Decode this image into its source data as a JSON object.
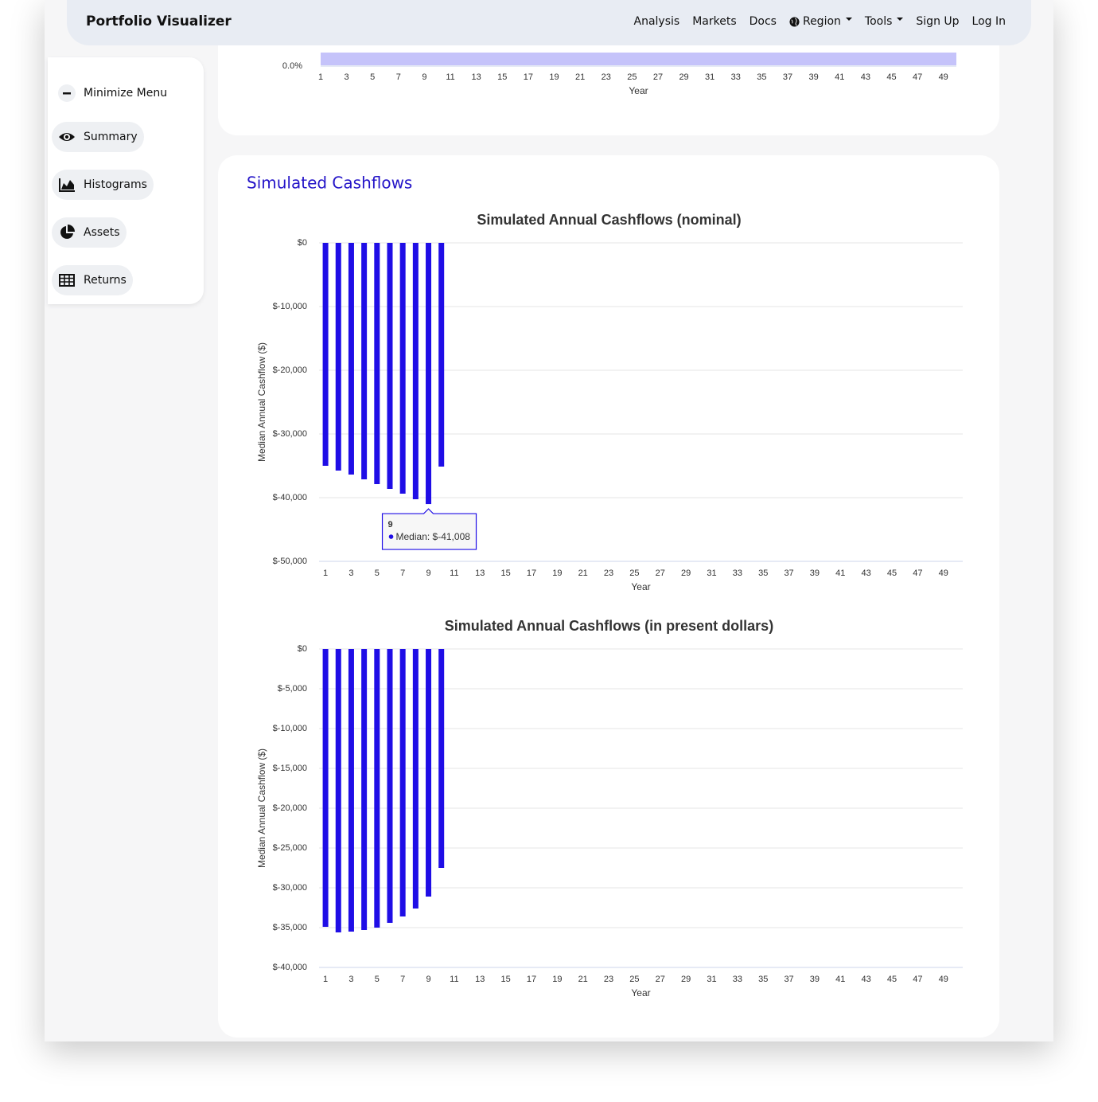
{
  "navbar": {
    "brand": "Portfolio Visualizer",
    "links": [
      "Analysis",
      "Markets",
      "Docs",
      "Region",
      "Tools",
      "Sign Up",
      "Log In"
    ]
  },
  "sidebar": {
    "items": [
      "Minimize Menu",
      "Summary",
      "Histograms",
      "Assets",
      "Returns"
    ]
  },
  "section_title": "Simulated Cashflows",
  "chart_data": [
    {
      "type": "area",
      "x_label": "Year",
      "xlim": [
        1,
        50
      ],
      "xticks": [
        1,
        3,
        5,
        7,
        9,
        11,
        13,
        15,
        17,
        19,
        21,
        23,
        25,
        27,
        29,
        31,
        33,
        35,
        37,
        39,
        41,
        43,
        45,
        47,
        49
      ],
      "yticks": [
        {
          "value": 0,
          "label": "0.0%"
        }
      ]
    },
    {
      "type": "bar",
      "title": "Simulated Annual Cashflows (nominal)",
      "x_label": "Year",
      "y_label": "Median Annual Cashflow ($)",
      "x": [
        1,
        2,
        3,
        4,
        5,
        6,
        7,
        8,
        9,
        10,
        11,
        12,
        13,
        14,
        15,
        16,
        17,
        18,
        19,
        20,
        21,
        22,
        23,
        24,
        25,
        26,
        27,
        28,
        29,
        30,
        31,
        32,
        33,
        34,
        35,
        36,
        37,
        38,
        39,
        40,
        41,
        42,
        43,
        44,
        45,
        46,
        47,
        48,
        49,
        50
      ],
      "xlim": [
        0.5,
        50.5
      ],
      "xticks": [
        1,
        3,
        5,
        7,
        9,
        11,
        13,
        15,
        17,
        19,
        21,
        23,
        25,
        27,
        29,
        31,
        33,
        35,
        37,
        39,
        41,
        43,
        45,
        47,
        49
      ],
      "ylim": [
        -50000,
        0
      ],
      "yticks": [
        {
          "value": 0,
          "label": "$0"
        },
        {
          "value": -10000,
          "label": "$-10,000"
        },
        {
          "value": -20000,
          "label": "$-20,000"
        },
        {
          "value": -30000,
          "label": "$-30,000"
        },
        {
          "value": -40000,
          "label": "$-40,000"
        },
        {
          "value": -50000,
          "label": "$-50,000"
        }
      ],
      "grid": true,
      "series": [
        {
          "name": "Median",
          "color": "#1f0de6",
          "values": [
            -35000,
            -35750,
            -36375,
            -37125,
            -37875,
            -38625,
            -39375,
            -40250,
            -41008,
            -35125,
            null,
            null,
            null,
            null,
            null,
            null,
            null,
            null,
            null,
            null,
            null,
            null,
            null,
            null,
            null,
            null,
            null,
            null,
            null,
            null,
            null,
            null,
            null,
            null,
            null,
            null,
            null,
            null,
            null,
            null,
            null,
            null,
            null,
            null,
            null,
            null,
            null,
            null,
            null,
            null
          ]
        }
      ],
      "tooltip": {
        "title": "9",
        "text": "Median: $-41,008"
      }
    },
    {
      "type": "bar",
      "title": "Simulated Annual Cashflows (in present dollars)",
      "x_label": "Year",
      "y_label": "Median Annual Cashflow ($)",
      "x": [
        1,
        2,
        3,
        4,
        5,
        6,
        7,
        8,
        9,
        10,
        11,
        12,
        13,
        14,
        15,
        16,
        17,
        18,
        19,
        20,
        21,
        22,
        23,
        24,
        25,
        26,
        27,
        28,
        29,
        30,
        31,
        32,
        33,
        34,
        35,
        36,
        37,
        38,
        39,
        40,
        41,
        42,
        43,
        44,
        45,
        46,
        47,
        48,
        49,
        50
      ],
      "xlim": [
        0.5,
        50.5
      ],
      "xticks": [
        1,
        3,
        5,
        7,
        9,
        11,
        13,
        15,
        17,
        19,
        21,
        23,
        25,
        27,
        29,
        31,
        33,
        35,
        37,
        39,
        41,
        43,
        45,
        47,
        49
      ],
      "ylim": [
        -40000,
        0
      ],
      "yticks": [
        {
          "value": 0,
          "label": "$0"
        },
        {
          "value": -5000,
          "label": "$-5,000"
        },
        {
          "value": -10000,
          "label": "$-10,000"
        },
        {
          "value": -15000,
          "label": "$-15,000"
        },
        {
          "value": -20000,
          "label": "$-20,000"
        },
        {
          "value": -25000,
          "label": "$-25,000"
        },
        {
          "value": -30000,
          "label": "$-30,000"
        },
        {
          "value": -35000,
          "label": "$-35,000"
        },
        {
          "value": -40000,
          "label": "$-40,000"
        }
      ],
      "grid": true,
      "series": [
        {
          "name": "Median",
          "color": "#1f0de6",
          "values": [
            -34900,
            -35600,
            -35500,
            -35300,
            -35000,
            -34400,
            -33600,
            -32600,
            -31100,
            -27500,
            null,
            null,
            null,
            null,
            null,
            null,
            null,
            null,
            null,
            null,
            null,
            null,
            null,
            null,
            null,
            null,
            null,
            null,
            null,
            null,
            null,
            null,
            null,
            null,
            null,
            null,
            null,
            null,
            null,
            null,
            null,
            null,
            null,
            null,
            null,
            null,
            null,
            null,
            null,
            null
          ]
        }
      ]
    }
  ]
}
